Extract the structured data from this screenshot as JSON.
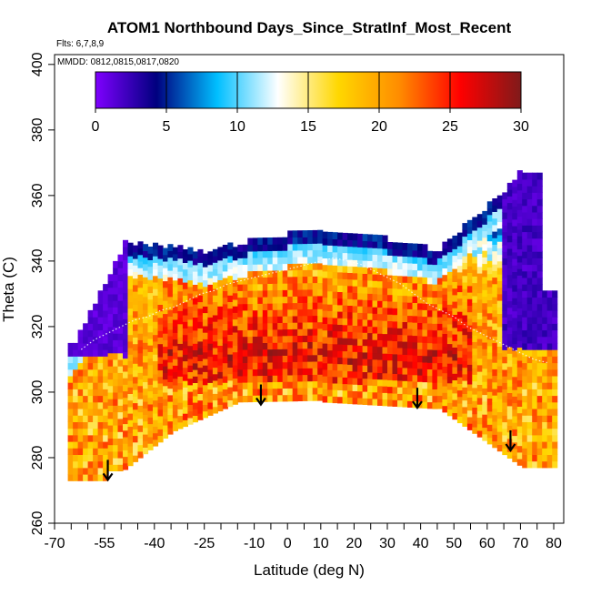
{
  "chart_data": {
    "type": "heatmap",
    "title": "ATOM1 Northbound Days_Since_StratInf_Most_Recent",
    "subtitle_flights": "Flts: 6,7,8,9",
    "subtitle_dates": "MMDD: 0812,0815,0817,0820",
    "xlabel": "Latitude (deg N)",
    "ylabel": "Theta (C)",
    "xlim": [
      -70,
      83
    ],
    "ylim": [
      260,
      403
    ],
    "x_ticks": [
      -70,
      -55,
      -40,
      -25,
      -10,
      0,
      10,
      20,
      30,
      40,
      50,
      60,
      70,
      80
    ],
    "x_ticks_unlabeled": [
      -65,
      -60,
      -50,
      -45,
      -35,
      -30,
      -20,
      -15,
      -5,
      5,
      15,
      25,
      35,
      45,
      55,
      65,
      75
    ],
    "y_ticks": [
      260,
      280,
      300,
      320,
      340,
      360,
      380,
      400
    ],
    "colorbar": {
      "min": 0,
      "max": 30,
      "ticks": [
        0,
        5,
        10,
        15,
        20,
        25,
        30
      ],
      "colors": [
        "#7f00ff",
        "#00007f",
        "#00bfff",
        "#ffffff",
        "#ffd700",
        "#ff8c00",
        "#ff0000",
        "#7f1a1a"
      ]
    },
    "grid": false,
    "legend": "colorbar top-inside",
    "flight_paths": [
      {
        "lat": [
          -62,
          -58,
          -54,
          -50,
          -46,
          -42,
          -38,
          -34,
          -30,
          -26,
          -22,
          -18,
          -14,
          -10,
          -6,
          -2,
          2,
          6,
          10,
          14,
          18,
          22,
          26,
          30,
          34,
          38,
          42,
          46,
          50,
          54,
          58,
          62,
          66,
          70,
          74,
          78
        ],
        "theta": [
          313,
          316,
          318,
          320,
          322,
          323,
          325,
          326,
          328,
          330,
          331,
          333,
          334,
          335,
          336,
          337,
          338,
          339,
          340,
          341,
          340,
          339,
          337,
          335,
          333,
          330,
          327,
          325,
          323,
          320,
          318,
          316,
          314,
          312,
          310,
          309
        ]
      }
    ],
    "profile_arrows": [
      {
        "lat": -54,
        "theta": 276
      },
      {
        "lat": -8,
        "theta": 299
      },
      {
        "lat": 39,
        "theta": 298
      },
      {
        "lat": 67,
        "theta": 285
      }
    ]
  }
}
